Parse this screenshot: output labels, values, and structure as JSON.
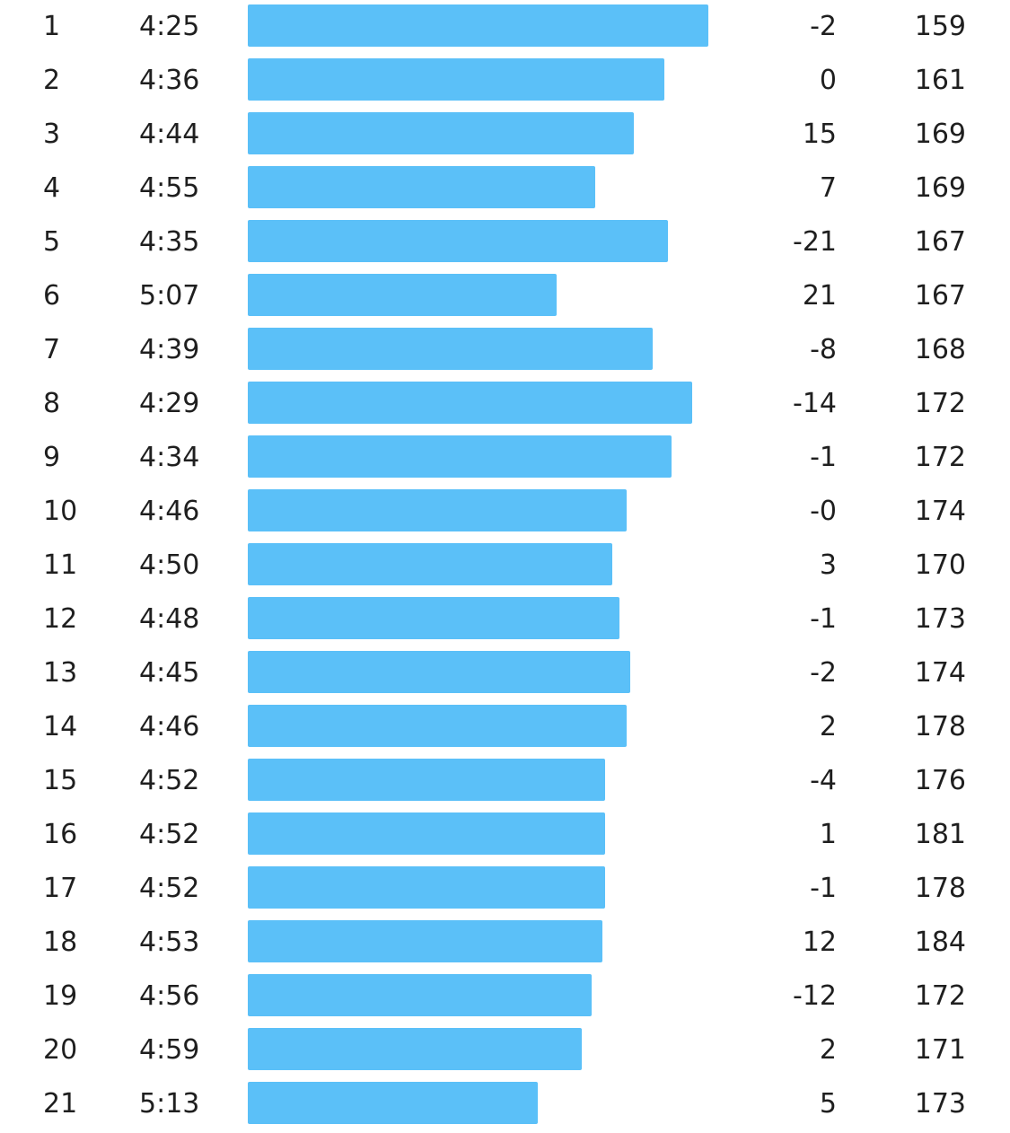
{
  "splits": {
    "bar_color": "#5bc0f8",
    "rows": [
      {
        "km": "1",
        "pace": "4:25",
        "elevation": "-2",
        "heart_rate": "159",
        "pace_seconds": 265
      },
      {
        "km": "2",
        "pace": "4:36",
        "elevation": "0",
        "heart_rate": "161",
        "pace_seconds": 276
      },
      {
        "km": "3",
        "pace": "4:44",
        "elevation": "15",
        "heart_rate": "169",
        "pace_seconds": 284
      },
      {
        "km": "4",
        "pace": "4:55",
        "elevation": "7",
        "heart_rate": "169",
        "pace_seconds": 295
      },
      {
        "km": "5",
        "pace": "4:35",
        "elevation": "-21",
        "heart_rate": "167",
        "pace_seconds": 275
      },
      {
        "km": "6",
        "pace": "5:07",
        "elevation": "21",
        "heart_rate": "167",
        "pace_seconds": 307
      },
      {
        "km": "7",
        "pace": "4:39",
        "elevation": "-8",
        "heart_rate": "168",
        "pace_seconds": 279
      },
      {
        "km": "8",
        "pace": "4:29",
        "elevation": "-14",
        "heart_rate": "172",
        "pace_seconds": 269
      },
      {
        "km": "9",
        "pace": "4:34",
        "elevation": "-1",
        "heart_rate": "172",
        "pace_seconds": 274
      },
      {
        "km": "10",
        "pace": "4:46",
        "elevation": "-0",
        "heart_rate": "174",
        "pace_seconds": 286
      },
      {
        "km": "11",
        "pace": "4:50",
        "elevation": "3",
        "heart_rate": "170",
        "pace_seconds": 290
      },
      {
        "km": "12",
        "pace": "4:48",
        "elevation": "-1",
        "heart_rate": "173",
        "pace_seconds": 288
      },
      {
        "km": "13",
        "pace": "4:45",
        "elevation": "-2",
        "heart_rate": "174",
        "pace_seconds": 285
      },
      {
        "km": "14",
        "pace": "4:46",
        "elevation": "2",
        "heart_rate": "178",
        "pace_seconds": 286
      },
      {
        "km": "15",
        "pace": "4:52",
        "elevation": "-4",
        "heart_rate": "176",
        "pace_seconds": 292
      },
      {
        "km": "16",
        "pace": "4:52",
        "elevation": "1",
        "heart_rate": "181",
        "pace_seconds": 292
      },
      {
        "km": "17",
        "pace": "4:52",
        "elevation": "-1",
        "heart_rate": "178",
        "pace_seconds": 292
      },
      {
        "km": "18",
        "pace": "4:53",
        "elevation": "12",
        "heart_rate": "184",
        "pace_seconds": 293
      },
      {
        "km": "19",
        "pace": "4:56",
        "elevation": "-12",
        "heart_rate": "172",
        "pace_seconds": 296
      },
      {
        "km": "20",
        "pace": "4:59",
        "elevation": "2",
        "heart_rate": "171",
        "pace_seconds": 299
      },
      {
        "km": "21",
        "pace": "5:13",
        "elevation": "5",
        "heart_rate": "173",
        "pace_seconds": 313
      }
    ]
  }
}
